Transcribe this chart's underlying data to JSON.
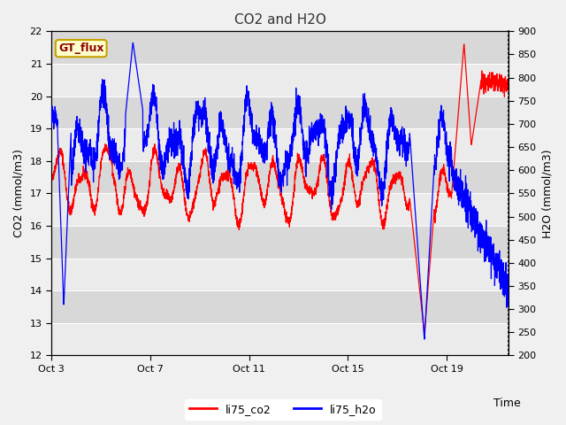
{
  "title": "CO2 and H2O",
  "xlabel": "Time",
  "ylabel_left": "CO2 (mmol/m3)",
  "ylabel_right": "H2O (mmol/m3)",
  "ylim_left": [
    12.0,
    22.0
  ],
  "ylim_right": [
    200,
    900
  ],
  "xtick_labels": [
    "Oct 3",
    "Oct 7",
    "Oct 11",
    "Oct 15",
    "Oct 19"
  ],
  "xtick_positions": [
    0,
    4,
    8,
    12,
    16
  ],
  "legend_labels": [
    "li75_co2",
    "li75_h2o"
  ],
  "legend_colors": [
    "red",
    "blue"
  ],
  "line_color_co2": "red",
  "line_color_h2o": "blue",
  "fig_bg_color": "#f0f0f0",
  "plot_bg_color": "#e0e0e0",
  "band_color_light": "#ebebeb",
  "band_color_dark": "#d8d8d8",
  "label_box_text": "GT_flux",
  "label_box_bg": "#ffffcc",
  "label_box_edge": "#c8a000",
  "xlim_days": 18.5,
  "n_points": 3000
}
